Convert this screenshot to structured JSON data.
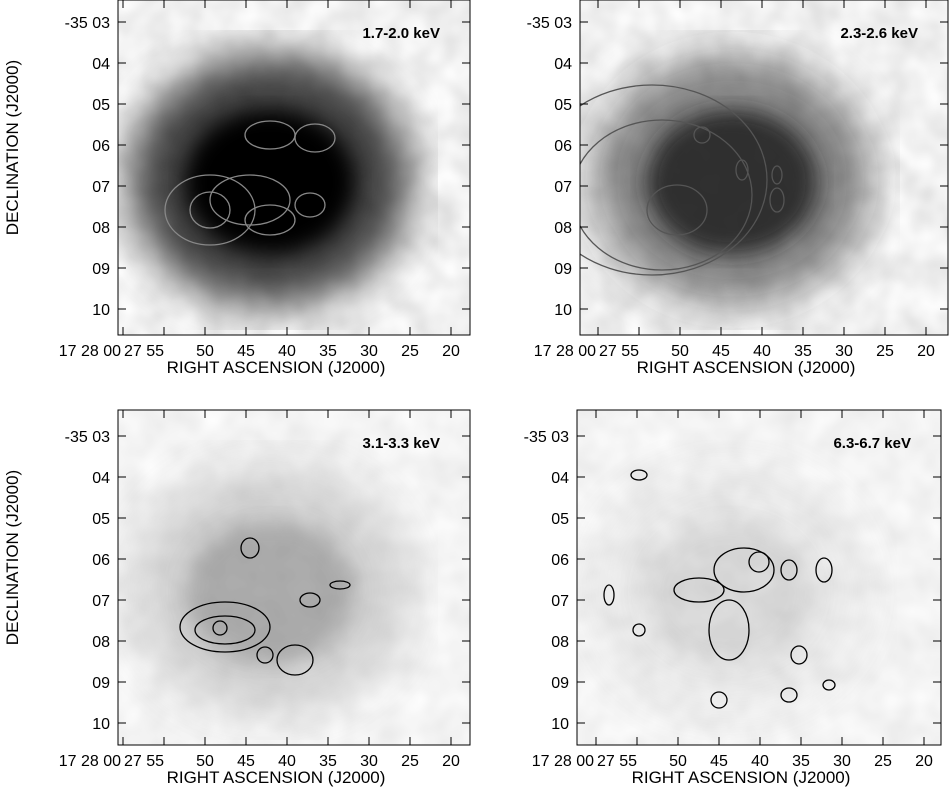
{
  "panels": [
    {
      "band": "1.7-2.0 keV",
      "y_label": "DECLINATION (J2000)",
      "x_label": "RIGHT ASCENSION (J2000)",
      "y_ticks": [
        "-35 03",
        "04",
        "05",
        "06",
        "07",
        "08",
        "09",
        "10"
      ],
      "x_ticks": [
        "17 28 00",
        "27 55",
        "50",
        "45",
        "40",
        "35",
        "30",
        "25",
        "20"
      ]
    },
    {
      "band": "2.3-2.6 keV",
      "x_label": "RIGHT ASCENSION (J2000)",
      "y_ticks": [
        "-35 03",
        "04",
        "05",
        "06",
        "07",
        "08",
        "09",
        "10"
      ],
      "x_ticks": [
        "17 28 00",
        "27 55",
        "50",
        "45",
        "40",
        "35",
        "30",
        "25",
        "20"
      ]
    },
    {
      "band": "3.1-3.3 keV",
      "y_label": "DECLINATION (J2000)",
      "x_label": "RIGHT ASCENSION (J2000)",
      "y_ticks": [
        "-35 03",
        "04",
        "05",
        "06",
        "07",
        "08",
        "09",
        "10"
      ],
      "x_ticks": [
        "17 28 00",
        "27 55",
        "50",
        "45",
        "40",
        "35",
        "30",
        "25",
        "20"
      ]
    },
    {
      "band": "6.3-6.7 keV",
      "x_label": "RIGHT ASCENSION (J2000)",
      "y_ticks": [
        "-35 03",
        "04",
        "05",
        "06",
        "07",
        "08",
        "09",
        "10"
      ],
      "x_ticks": [
        "17 28 00",
        "27 55",
        "50",
        "45",
        "40",
        "35",
        "30",
        "25",
        "20"
      ]
    }
  ]
}
